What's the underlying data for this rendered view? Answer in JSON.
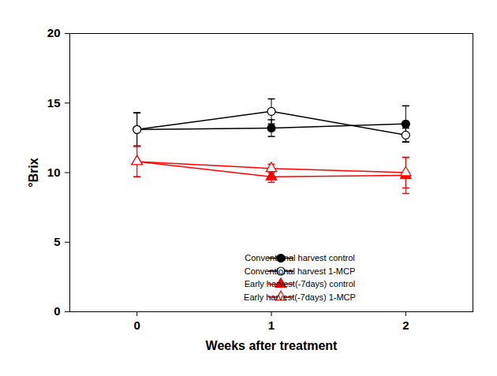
{
  "chart_data": {
    "type": "line",
    "x_label": "Weeks after treatment",
    "y_label": "°Brix",
    "x": [
      0,
      1,
      2
    ],
    "xlim": [
      -0.5,
      2.5
    ],
    "xticks": [
      0,
      1,
      2
    ],
    "ylim": [
      0,
      20
    ],
    "yticks": [
      0,
      5,
      10,
      15,
      20
    ],
    "legend": "lower right",
    "series": [
      {
        "name": "Conventional harvest control",
        "color": "#000000",
        "marker": "circle",
        "values": [
          13.1,
          13.2,
          13.5
        ],
        "errors": [
          1.2,
          0.6,
          1.3
        ]
      },
      {
        "name": "Conventional harvest 1-MCP",
        "color": "#000000",
        "marker": "circle-open",
        "values": [
          13.1,
          14.4,
          12.7
        ],
        "errors": [
          1.2,
          0.9,
          0.5
        ]
      },
      {
        "name": "Early harvest(-7days) control",
        "color": "#ff0000",
        "marker": "triangle",
        "values": [
          10.8,
          9.7,
          9.8
        ],
        "errors": [
          1.1,
          0.4,
          1.3
        ]
      },
      {
        "name": "Early harvest(-7days) 1-MCP",
        "color": "#ff0000",
        "marker": "triangle-open",
        "values": [
          10.8,
          10.3,
          10.0
        ],
        "errors": [
          1.1,
          0.3,
          1.1
        ]
      }
    ]
  }
}
